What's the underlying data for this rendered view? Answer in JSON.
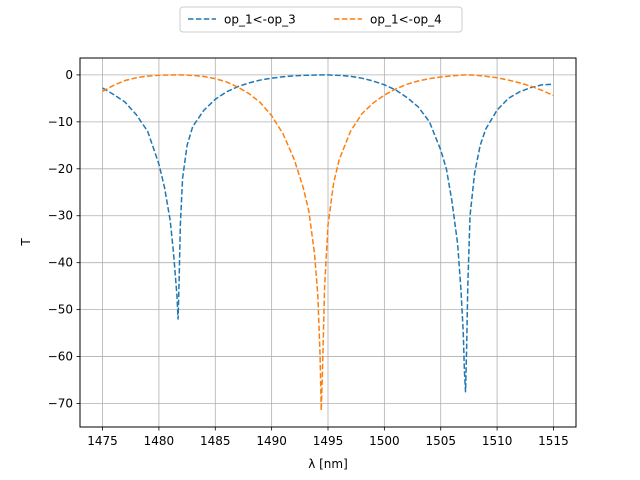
{
  "chart_data": {
    "type": "line",
    "xlabel": "λ [nm]",
    "ylabel": "T",
    "xlim": [
      1473.0,
      1517.0
    ],
    "ylim": [
      -75,
      3.6
    ],
    "xticks": [
      1475,
      1480,
      1485,
      1490,
      1495,
      1500,
      1505,
      1510,
      1515
    ],
    "yticks": [
      0,
      -10,
      -20,
      -30,
      -40,
      -50,
      -60,
      -70
    ],
    "grid": true,
    "legend_position": "top-center",
    "line_style": "dashed",
    "series": [
      {
        "name": "op_1<-op_3",
        "color": "#1f77b4",
        "x": [
          1475,
          1476,
          1477,
          1478,
          1479,
          1480,
          1480.5,
          1481,
          1481.3,
          1481.5,
          1481.6,
          1481.7,
          1481.8,
          1481.9,
          1482.1,
          1482.5,
          1483,
          1484,
          1485,
          1486,
          1487,
          1488,
          1489,
          1490,
          1491,
          1492,
          1493,
          1494,
          1494.5,
          1495,
          1496,
          1497,
          1498,
          1499,
          1500,
          1501,
          1502,
          1503,
          1504,
          1505,
          1505.5,
          1506,
          1506.5,
          1506.8,
          1507,
          1507.1,
          1507.2,
          1507.3,
          1507.4,
          1507.6,
          1508,
          1508.5,
          1509,
          1510,
          1511,
          1512,
          1513,
          1514,
          1515
        ],
        "y": [
          -2.8,
          -4.2,
          -5.8,
          -8.5,
          -12,
          -19,
          -24,
          -31,
          -38,
          -44,
          -47,
          -52,
          -43,
          -32,
          -22,
          -15,
          -11,
          -7.5,
          -5.2,
          -3.6,
          -2.5,
          -1.7,
          -1.1,
          -0.7,
          -0.4,
          -0.2,
          -0.08,
          -0.02,
          0,
          0,
          -0.1,
          -0.3,
          -0.7,
          -1.3,
          -2.1,
          -3.2,
          -4.8,
          -6.8,
          -10,
          -16,
          -20,
          -27,
          -36,
          -46,
          -55,
          -63,
          -67.5,
          -58,
          -45,
          -30,
          -21,
          -15,
          -11.5,
          -7.5,
          -5,
          -3.6,
          -2.7,
          -2.1,
          -2.0
        ]
      },
      {
        "name": "op_1<-op_4",
        "color": "#ff7f0e",
        "x": [
          1475,
          1476,
          1477,
          1478,
          1479,
          1480,
          1481,
          1481.8,
          1482.5,
          1483,
          1484,
          1485,
          1486,
          1487,
          1488,
          1489,
          1490,
          1491,
          1492,
          1492.8,
          1493.3,
          1493.8,
          1494.1,
          1494.3,
          1494.4,
          1494.5,
          1494.7,
          1495,
          1495.5,
          1496,
          1497,
          1498,
          1499,
          1500,
          1501,
          1502,
          1503,
          1504,
          1505,
          1506,
          1507,
          1507.3,
          1508,
          1509,
          1510,
          1511,
          1512,
          1513,
          1514,
          1515
        ],
        "y": [
          -3.5,
          -2.2,
          -1.2,
          -0.6,
          -0.25,
          -0.08,
          -0.01,
          0,
          -0.05,
          -0.1,
          -0.35,
          -0.8,
          -1.5,
          -2.6,
          -4,
          -5.9,
          -8.7,
          -12.5,
          -18,
          -24,
          -29,
          -38,
          -47,
          -60,
          -71.5,
          -64,
          -45,
          -32,
          -23,
          -18,
          -12,
          -8.3,
          -6,
          -4.3,
          -3,
          -2,
          -1.3,
          -0.8,
          -0.45,
          -0.2,
          -0.02,
          0,
          -0.05,
          -0.3,
          -0.6,
          -1.1,
          -1.7,
          -2.4,
          -3.3,
          -4.4
        ]
      }
    ]
  }
}
